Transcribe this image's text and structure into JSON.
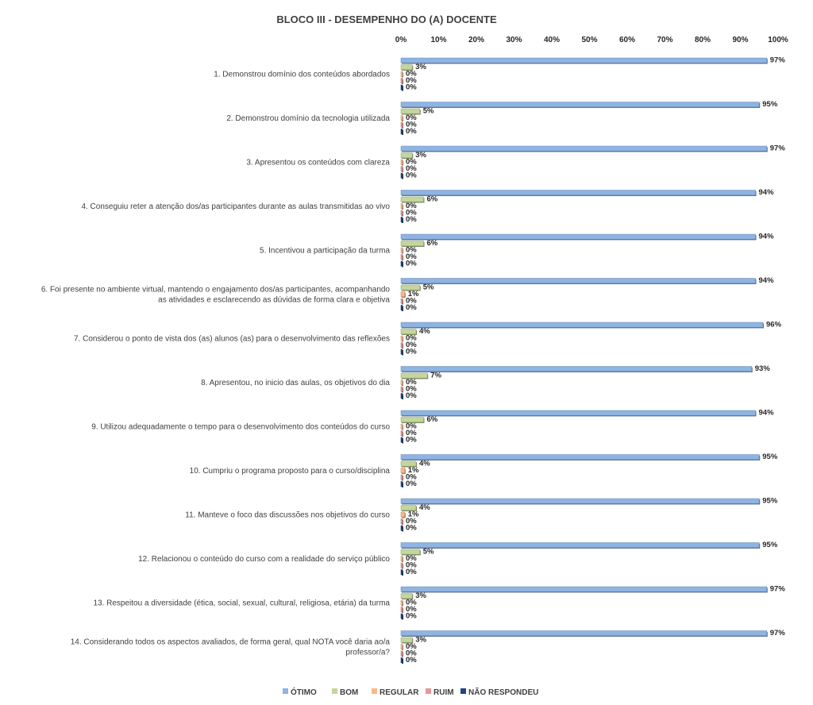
{
  "chart_data": {
    "type": "bar",
    "orientation": "horizontal",
    "title": "BLOCO III - DESEMPENHO DO (A) DOCENTE",
    "xlim": [
      0,
      100
    ],
    "x_ticks": [
      "0%",
      "10%",
      "20%",
      "30%",
      "40%",
      "50%",
      "60%",
      "70%",
      "80%",
      "90%",
      "100%"
    ],
    "value_suffix": "%",
    "legend_position": "bottom",
    "categories": [
      [
        "1. Demonstrou domínio dos conteúdos abordados"
      ],
      [
        "2. Demonstrou domínio da tecnologia utilizada"
      ],
      [
        "3. Apresentou os conteúdos com clareza"
      ],
      [
        "4. Conseguiu reter a atenção dos/as participantes durante as aulas transmitidas ao vivo"
      ],
      [
        "5. Incentivou a participação da turma"
      ],
      [
        "6. Foi presente no ambiente virtual, mantendo o engajamento dos/as participantes, acompanhando",
        "as atividades e esclarecendo as dúvidas de forma clara e objetiva"
      ],
      [
        "7. Considerou o ponto de vista dos (as) alunos (as) para o desenvolvimento das reflexões"
      ],
      [
        "8. Apresentou, no inicio das aulas, os objetivos do dia"
      ],
      [
        "9. Utilizou adequadamente o tempo para o desenvolvimento dos conteúdos do curso"
      ],
      [
        "10. Cumpriu o programa proposto para o curso/disciplina"
      ],
      [
        "11. Manteve o foco das discussões nos objetivos do curso"
      ],
      [
        "12. Relacionou o conteúdo do curso com a realidade do serviço público"
      ],
      [
        "13. Respeitou a diversidade (ética, social, sexual, cultural, religiosa, etária) da turma"
      ],
      [
        "14. Considerando todos os aspectos avaliados, de forma geral, qual NOTA você daria ao/a",
        "professor/a?"
      ]
    ],
    "series": [
      {
        "name": "ÓTIMO",
        "color": "#8eb4e3",
        "values": [
          97,
          95,
          97,
          94,
          94,
          94,
          96,
          93,
          94,
          95,
          95,
          95,
          97,
          97
        ]
      },
      {
        "name": "BOM",
        "color": "#c3d69b",
        "values": [
          3,
          5,
          3,
          6,
          6,
          5,
          4,
          7,
          6,
          4,
          4,
          5,
          3,
          3
        ]
      },
      {
        "name": "REGULAR",
        "color": "#f7b98a",
        "values": [
          0,
          0,
          0,
          0,
          0,
          1,
          0,
          0,
          0,
          1,
          1,
          0,
          0,
          0
        ]
      },
      {
        "name": "RUIM",
        "color": "#e6989a",
        "values": [
          0,
          0,
          0,
          0,
          0,
          0,
          0,
          0,
          0,
          0,
          0,
          0,
          0,
          0
        ]
      },
      {
        "name": "NÃO RESPONDEU",
        "color": "#1f497d",
        "values": [
          0,
          0,
          0,
          0,
          0,
          0,
          0,
          0,
          0,
          0,
          0,
          0,
          0,
          0
        ]
      }
    ]
  }
}
